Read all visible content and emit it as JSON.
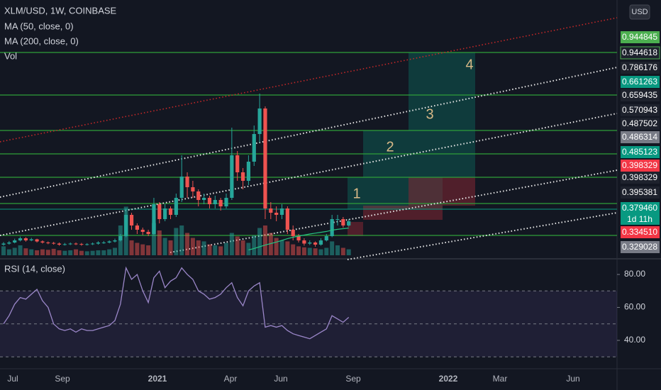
{
  "chart_data": [
    {
      "type": "candlestick",
      "title": "XLM/USD, 1W, COINBASE",
      "indicators": [
        "MA (50, close, 0)",
        "MA (200, close, 0)",
        "Vol"
      ],
      "currency": "USD",
      "ylim": [
        0.05,
        1.0
      ],
      "open": [
        0.08,
        0.085,
        0.09,
        0.1,
        0.11,
        0.1,
        0.105,
        0.095,
        0.09,
        0.088,
        0.085,
        0.08,
        0.082,
        0.085,
        0.083,
        0.08,
        0.082,
        0.085,
        0.09,
        0.09,
        0.095,
        0.1,
        0.12,
        0.22,
        0.17,
        0.15,
        0.14,
        0.13,
        0.27,
        0.2,
        0.25,
        0.22,
        0.3,
        0.4,
        0.35,
        0.33,
        0.29,
        0.3,
        0.27,
        0.29,
        0.26,
        0.3,
        0.5,
        0.42,
        0.38,
        0.47,
        0.6,
        0.72,
        0.25,
        0.23,
        0.22,
        0.25,
        0.15,
        0.12,
        0.1,
        0.085,
        0.09,
        0.08,
        0.1,
        0.12,
        0.2,
        0.2,
        0.17
      ],
      "high": [
        0.092,
        0.097,
        0.108,
        0.118,
        0.115,
        0.112,
        0.108,
        0.1,
        0.095,
        0.093,
        0.09,
        0.088,
        0.09,
        0.09,
        0.088,
        0.087,
        0.09,
        0.096,
        0.097,
        0.1,
        0.108,
        0.13,
        0.25,
        0.23,
        0.18,
        0.16,
        0.15,
        0.3,
        0.28,
        0.27,
        0.26,
        0.32,
        0.5,
        0.42,
        0.38,
        0.34,
        0.32,
        0.31,
        0.31,
        0.3,
        0.32,
        0.63,
        0.52,
        0.44,
        0.5,
        0.64,
        0.79,
        0.73,
        0.28,
        0.26,
        0.27,
        0.26,
        0.17,
        0.13,
        0.11,
        0.1,
        0.095,
        0.11,
        0.13,
        0.22,
        0.22,
        0.21,
        0.2
      ],
      "low": [
        0.075,
        0.08,
        0.086,
        0.095,
        0.094,
        0.096,
        0.09,
        0.085,
        0.082,
        0.08,
        0.075,
        0.076,
        0.078,
        0.078,
        0.075,
        0.076,
        0.078,
        0.08,
        0.084,
        0.086,
        0.09,
        0.095,
        0.115,
        0.15,
        0.13,
        0.125,
        0.12,
        0.125,
        0.18,
        0.19,
        0.2,
        0.21,
        0.28,
        0.3,
        0.3,
        0.26,
        0.27,
        0.25,
        0.25,
        0.24,
        0.25,
        0.29,
        0.38,
        0.34,
        0.36,
        0.45,
        0.56,
        0.2,
        0.2,
        0.19,
        0.2,
        0.13,
        0.1,
        0.09,
        0.075,
        0.078,
        0.07,
        0.075,
        0.095,
        0.115,
        0.17,
        0.16,
        0.165
      ],
      "close": [
        0.085,
        0.09,
        0.1,
        0.11,
        0.1,
        0.105,
        0.095,
        0.09,
        0.088,
        0.085,
        0.08,
        0.082,
        0.085,
        0.083,
        0.08,
        0.082,
        0.085,
        0.09,
        0.09,
        0.095,
        0.1,
        0.12,
        0.22,
        0.17,
        0.15,
        0.14,
        0.13,
        0.27,
        0.2,
        0.25,
        0.22,
        0.3,
        0.4,
        0.35,
        0.33,
        0.29,
        0.3,
        0.27,
        0.29,
        0.26,
        0.3,
        0.5,
        0.42,
        0.38,
        0.47,
        0.6,
        0.72,
        0.25,
        0.23,
        0.22,
        0.25,
        0.15,
        0.12,
        0.1,
        0.085,
        0.09,
        0.08,
        0.1,
        0.12,
        0.2,
        0.2,
        0.17,
        0.19
      ],
      "ma50": [
        null,
        null,
        null,
        null,
        null,
        null,
        null,
        null,
        null,
        null,
        null,
        null,
        null,
        null,
        null,
        null,
        null,
        null,
        null,
        null,
        null,
        null,
        null,
        null,
        null,
        null,
        null,
        null,
        null,
        null,
        null,
        null,
        null,
        null,
        null,
        null,
        null,
        null,
        null,
        null,
        null,
        null,
        null,
        null,
        0.055,
        0.062,
        0.07,
        0.078,
        0.085,
        0.092,
        0.1,
        0.108,
        0.115,
        0.12,
        0.125,
        0.13,
        0.134,
        0.138,
        0.142,
        0.148,
        0.152,
        0.155,
        0.158
      ],
      "ma_color": "#26c281",
      "volume": [
        18,
        12,
        15,
        20,
        14,
        12,
        10,
        12,
        11,
        13,
        10,
        9,
        10,
        12,
        9,
        8,
        9,
        10,
        10,
        12,
        15,
        60,
        98,
        30,
        25,
        22,
        20,
        65,
        50,
        35,
        30,
        55,
        60,
        45,
        35,
        30,
        28,
        22,
        20,
        18,
        25,
        45,
        38,
        30,
        25,
        40,
        55,
        60,
        45,
        35,
        30,
        28,
        22,
        18,
        16,
        15,
        14,
        12,
        15,
        28,
        20,
        15,
        12
      ],
      "vlim": [
        0,
        100
      ],
      "up_color": "#26a69a",
      "down_color": "#ef5350",
      "price_tags": [
        0.944845,
        0.944618,
        0.786176,
        0.661263,
        0.659435,
        0.570943,
        0.487502,
        0.486314,
        0.485123,
        0.398329,
        0.398329,
        0.395381,
        {
          "value": 0.37946,
          "label": "0.379460"
        },
        {
          "value": 0.33451,
          "label": "0.334510"
        },
        0.329028
      ],
      "countdown": "1d 11h",
      "drawing_labels": [
        "1",
        "2",
        "3",
        "4"
      ]
    },
    {
      "type": "line",
      "title": "RSI (14, close)",
      "values": [
        50,
        55,
        62,
        66,
        65,
        68,
        71,
        64,
        60,
        50,
        47,
        46,
        47,
        45,
        47,
        46,
        46,
        47,
        48,
        49,
        52,
        62,
        84,
        77,
        80,
        70,
        63,
        78,
        82,
        72,
        76,
        78,
        84,
        80,
        77,
        70,
        68,
        65,
        66,
        68,
        72,
        75,
        66,
        61,
        70,
        73,
        75,
        48,
        49,
        48,
        49,
        46,
        44,
        43,
        42,
        41,
        43,
        45,
        47,
        55,
        53,
        51,
        54
      ],
      "color": "#9b87c9",
      "ylim": [
        22.8,
        88.2
      ],
      "yticks": [
        {
          "value": 80,
          "label": "80.00"
        },
        {
          "value": 60,
          "label": "60.00"
        },
        {
          "value": 40,
          "label": "40.00"
        }
      ],
      "levels": [
        70,
        50,
        30
      ]
    }
  ],
  "time_labels": [
    "Jul",
    "Sep",
    "2021",
    "Apr",
    "Jun",
    "Sep",
    "2022",
    "Mar",
    "Jun"
  ]
}
